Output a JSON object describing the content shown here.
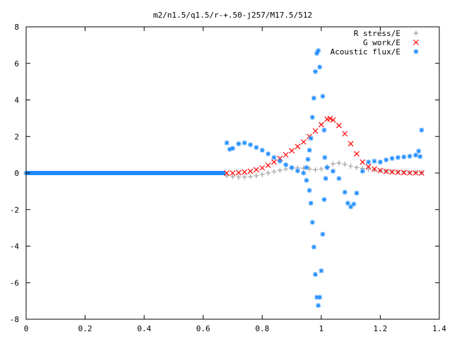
{
  "chart_data": {
    "type": "scatter",
    "title": "m2/n1.5/q1.5/r-+.50-j257/M17.5/512",
    "xlabel": "",
    "ylabel": "",
    "xlim": [
      0,
      1.4
    ],
    "ylim": [
      -8,
      8
    ],
    "x_ticks": [
      "0",
      "0.2",
      "0.4",
      "0.6",
      "0.8",
      "1",
      "1.2",
      "1.4"
    ],
    "y_ticks": [
      "-8",
      "-6",
      "-4",
      "-2",
      "0",
      "2",
      "4",
      "6",
      "8"
    ],
    "grid": false,
    "legend_position": "top-right",
    "series": [
      {
        "name": "R stress/E",
        "marker": "plus",
        "color": "#a0a0a0",
        "points": [
          [
            0.68,
            -0.15
          ],
          [
            0.7,
            -0.2
          ],
          [
            0.72,
            -0.22
          ],
          [
            0.74,
            -0.22
          ],
          [
            0.76,
            -0.2
          ],
          [
            0.78,
            -0.15
          ],
          [
            0.8,
            -0.08
          ],
          [
            0.82,
            0.0
          ],
          [
            0.84,
            0.08
          ],
          [
            0.86,
            0.15
          ],
          [
            0.88,
            0.22
          ],
          [
            0.9,
            0.26
          ],
          [
            0.92,
            0.28
          ],
          [
            0.94,
            0.26
          ],
          [
            0.96,
            0.22
          ],
          [
            0.98,
            0.18
          ],
          [
            1.0,
            0.22
          ],
          [
            1.02,
            0.35
          ],
          [
            1.04,
            0.5
          ],
          [
            1.06,
            0.55
          ],
          [
            1.08,
            0.48
          ],
          [
            1.1,
            0.38
          ],
          [
            1.12,
            0.3
          ],
          [
            1.14,
            0.25
          ],
          [
            1.16,
            0.2
          ],
          [
            1.18,
            0.16
          ],
          [
            1.2,
            0.13
          ],
          [
            1.22,
            0.11
          ],
          [
            1.24,
            0.09
          ],
          [
            1.26,
            0.07
          ],
          [
            1.28,
            0.05
          ],
          [
            1.3,
            0.04
          ],
          [
            1.32,
            0.03
          ],
          [
            1.34,
            0.02
          ]
        ]
      },
      {
        "name": "G work/E",
        "marker": "cross",
        "color": "#ff0000",
        "points": [
          [
            0.68,
            0.0
          ],
          [
            0.7,
            0.0
          ],
          [
            0.72,
            0.02
          ],
          [
            0.74,
            0.05
          ],
          [
            0.76,
            0.1
          ],
          [
            0.78,
            0.18
          ],
          [
            0.8,
            0.28
          ],
          [
            0.82,
            0.42
          ],
          [
            0.84,
            0.6
          ],
          [
            0.86,
            0.8
          ],
          [
            0.88,
            1.0
          ],
          [
            0.9,
            1.22
          ],
          [
            0.92,
            1.45
          ],
          [
            0.94,
            1.7
          ],
          [
            0.96,
            2.0
          ],
          [
            0.98,
            2.3
          ],
          [
            1.0,
            2.65
          ],
          [
            1.02,
            2.95
          ],
          [
            1.03,
            2.98
          ],
          [
            1.04,
            2.9
          ],
          [
            1.06,
            2.6
          ],
          [
            1.08,
            2.15
          ],
          [
            1.1,
            1.6
          ],
          [
            1.12,
            1.05
          ],
          [
            1.14,
            0.6
          ],
          [
            1.16,
            0.35
          ],
          [
            1.18,
            0.22
          ],
          [
            1.2,
            0.14
          ],
          [
            1.22,
            0.09
          ],
          [
            1.24,
            0.06
          ],
          [
            1.26,
            0.04
          ],
          [
            1.28,
            0.02
          ],
          [
            1.3,
            0.01
          ],
          [
            1.32,
            0.01
          ],
          [
            1.34,
            0.0
          ]
        ]
      },
      {
        "name": "Acoustic flux/E",
        "marker": "star",
        "color": "#1e8cff",
        "points": [
          [
            0.0,
            0.0
          ],
          [
            0.68,
            1.65
          ],
          [
            0.69,
            1.3
          ],
          [
            0.7,
            1.35
          ],
          [
            0.72,
            1.6
          ],
          [
            0.74,
            1.65
          ],
          [
            0.76,
            1.55
          ],
          [
            0.78,
            1.4
          ],
          [
            0.8,
            1.25
          ],
          [
            0.82,
            1.05
          ],
          [
            0.84,
            0.85
          ],
          [
            0.86,
            0.65
          ],
          [
            0.88,
            0.45
          ],
          [
            0.9,
            0.3
          ],
          [
            0.92,
            0.12
          ],
          [
            0.94,
            0.0
          ],
          [
            0.95,
            -0.4
          ],
          [
            0.96,
            -0.95
          ],
          [
            0.965,
            -1.65
          ],
          [
            0.97,
            -2.7
          ],
          [
            0.975,
            -4.05
          ],
          [
            0.98,
            -5.55
          ],
          [
            0.985,
            -6.8
          ],
          [
            0.99,
            -7.25
          ],
          [
            0.995,
            -6.8
          ],
          [
            1.0,
            -5.35
          ],
          [
            1.005,
            -3.35
          ],
          [
            1.01,
            -1.45
          ],
          [
            1.015,
            -0.3
          ],
          [
            0.95,
            0.3
          ],
          [
            0.955,
            0.75
          ],
          [
            0.96,
            1.25
          ],
          [
            0.965,
            1.9
          ],
          [
            0.97,
            3.05
          ],
          [
            0.975,
            4.1
          ],
          [
            0.98,
            5.55
          ],
          [
            0.985,
            6.55
          ],
          [
            0.99,
            6.7
          ],
          [
            0.995,
            5.8
          ],
          [
            1.005,
            4.2
          ],
          [
            1.01,
            2.35
          ],
          [
            1.012,
            0.85
          ],
          [
            1.02,
            0.3
          ],
          [
            1.04,
            0.1
          ],
          [
            1.06,
            -0.3
          ],
          [
            1.08,
            -1.05
          ],
          [
            1.09,
            -1.65
          ],
          [
            1.1,
            -1.85
          ],
          [
            1.11,
            -1.7
          ],
          [
            1.12,
            -1.1
          ],
          [
            1.14,
            0.1
          ],
          [
            1.16,
            0.6
          ],
          [
            1.18,
            0.65
          ],
          [
            1.2,
            0.6
          ],
          [
            1.22,
            0.72
          ],
          [
            1.24,
            0.8
          ],
          [
            1.26,
            0.85
          ],
          [
            1.28,
            0.88
          ],
          [
            1.3,
            0.92
          ],
          [
            1.32,
            0.98
          ],
          [
            1.33,
            1.2
          ],
          [
            1.335,
            0.9
          ],
          [
            1.34,
            2.35
          ]
        ]
      }
    ]
  }
}
